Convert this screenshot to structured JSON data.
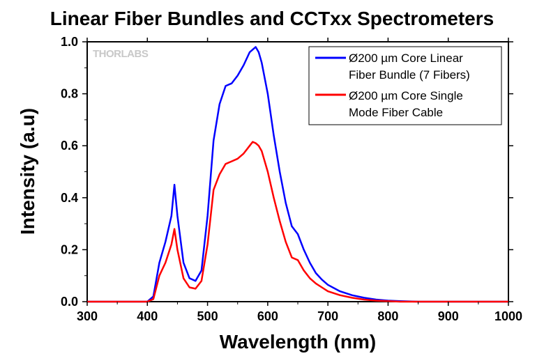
{
  "chart_data": {
    "type": "line",
    "title": "Linear Fiber Bundles and CCTxx Spectrometers",
    "xlabel": "Wavelength (nm)",
    "ylabel": "Intensity (a.u)",
    "xlim": [
      300,
      1000
    ],
    "ylim": [
      0,
      1.0
    ],
    "xticks": [
      300,
      400,
      500,
      600,
      700,
      800,
      900,
      1000
    ],
    "xtick_labels": [
      "300",
      "400",
      "500",
      "600",
      "700",
      "800",
      "900",
      "1000"
    ],
    "yticks": [
      0,
      0.2,
      0.4,
      0.6,
      0.8,
      1.0
    ],
    "ytick_labels": [
      "0.0",
      "0.2",
      "0.4",
      "0.6",
      "0.8",
      "1.0"
    ],
    "grid": false,
    "legend_position": "top-right",
    "watermark": "THORLABS",
    "series": [
      {
        "name": "Ø200 µm Core Linear Fiber Bundle (7 Fibers)",
        "legend_lines": [
          "Ø200 µm Core Linear",
          "Fiber Bundle (7 Fibers)"
        ],
        "color": "#0000ff",
        "x": [
          300,
          400,
          410,
          420,
          430,
          440,
          445,
          450,
          460,
          470,
          480,
          490,
          500,
          510,
          520,
          530,
          540,
          550,
          560,
          570,
          575,
          580,
          585,
          590,
          600,
          610,
          620,
          630,
          640,
          650,
          660,
          670,
          680,
          690,
          700,
          720,
          740,
          760,
          780,
          800,
          820,
          850,
          900,
          1000
        ],
        "y": [
          0.0,
          0.0,
          0.02,
          0.15,
          0.23,
          0.33,
          0.45,
          0.33,
          0.15,
          0.09,
          0.08,
          0.12,
          0.33,
          0.62,
          0.76,
          0.83,
          0.84,
          0.87,
          0.91,
          0.96,
          0.97,
          0.98,
          0.96,
          0.92,
          0.8,
          0.64,
          0.5,
          0.38,
          0.29,
          0.26,
          0.2,
          0.15,
          0.11,
          0.085,
          0.065,
          0.04,
          0.025,
          0.015,
          0.008,
          0.004,
          0.002,
          0.0,
          0.0,
          0.0
        ]
      },
      {
        "name": "Ø200 µm Core Single Mode Fiber Cable",
        "legend_lines": [
          "Ø200 µm Core Single",
          "Mode Fiber Cable"
        ],
        "color": "#ff0000",
        "x": [
          300,
          400,
          410,
          420,
          430,
          440,
          445,
          450,
          460,
          470,
          480,
          490,
          500,
          510,
          520,
          530,
          540,
          550,
          560,
          570,
          575,
          580,
          585,
          590,
          600,
          610,
          620,
          630,
          640,
          650,
          660,
          670,
          680,
          690,
          700,
          720,
          740,
          760,
          780,
          800,
          820,
          850,
          900,
          1000
        ],
        "y": [
          0.0,
          0.0,
          0.01,
          0.1,
          0.15,
          0.22,
          0.28,
          0.2,
          0.09,
          0.055,
          0.05,
          0.08,
          0.22,
          0.43,
          0.49,
          0.53,
          0.54,
          0.55,
          0.57,
          0.6,
          0.615,
          0.61,
          0.6,
          0.58,
          0.5,
          0.4,
          0.31,
          0.23,
          0.17,
          0.16,
          0.12,
          0.09,
          0.07,
          0.055,
          0.04,
          0.025,
          0.015,
          0.008,
          0.004,
          0.002,
          0.0,
          0.0,
          0.0,
          0.0
        ]
      }
    ]
  }
}
